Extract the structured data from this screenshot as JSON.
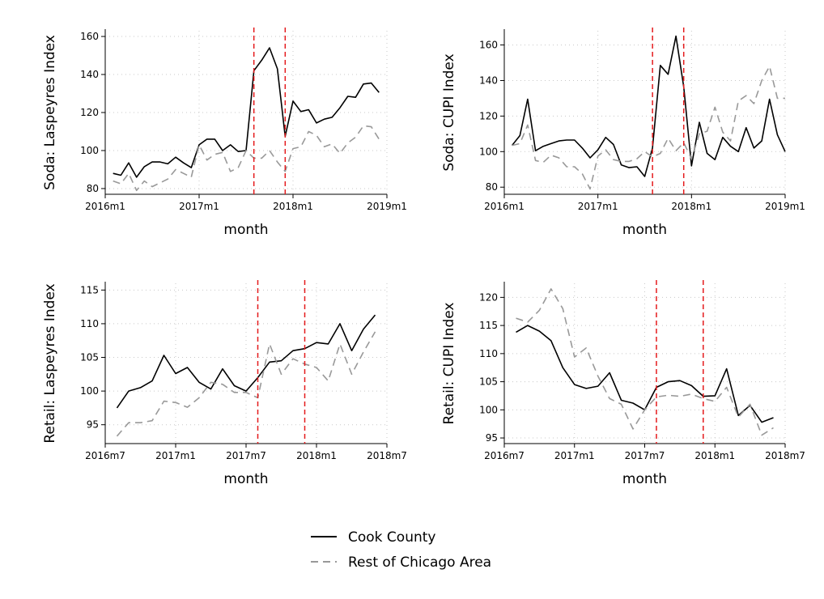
{
  "chart_data": [
    {
      "type": "line",
      "ylabel": "Soda: Laspeyres Index",
      "xlabel": "month",
      "xlim": [
        0,
        36
      ],
      "ylim": [
        77,
        163
      ],
      "yticks": [
        80,
        100,
        120,
        140,
        160
      ],
      "xticks": [
        {
          "v": 0,
          "label": "2016m1"
        },
        {
          "v": 12,
          "label": "2017m1"
        },
        {
          "v": 24,
          "label": "2018m1"
        },
        {
          "v": 36,
          "label": "2019m1"
        }
      ],
      "vlines": [
        19,
        23
      ],
      "x_start": 1,
      "series": [
        {
          "name": "Cook County",
          "values": [
            88,
            87,
            93.5,
            86,
            91.5,
            94,
            94,
            93,
            96.5,
            93.5,
            91,
            103,
            106,
            106,
            100,
            103,
            99.5,
            100,
            142,
            147.5,
            154,
            143,
            107.5,
            126,
            120.5,
            121.5,
            114.5,
            116.5,
            117.5,
            122.5,
            128.5,
            128,
            135,
            135.5,
            130.5
          ]
        },
        {
          "name": "Rest of Chicago Area",
          "values": [
            84,
            82.5,
            88,
            79,
            84,
            81,
            83,
            85,
            90,
            88,
            86,
            103,
            95,
            98,
            99,
            89,
            91,
            100,
            96,
            96,
            100,
            94,
            89,
            101,
            102,
            110,
            108,
            102,
            103.5,
            98.5,
            104,
            107,
            113,
            112.5,
            106
          ]
        }
      ]
    },
    {
      "type": "line",
      "ylabel": "Soda: CUPI Index",
      "xlabel": "month",
      "xlim": [
        0,
        36
      ],
      "ylim": [
        76,
        168
      ],
      "yticks": [
        80,
        100,
        120,
        140,
        160
      ],
      "xticks": [
        {
          "v": 0,
          "label": "2016m1"
        },
        {
          "v": 12,
          "label": "2017m1"
        },
        {
          "v": 24,
          "label": "2018m1"
        },
        {
          "v": 36,
          "label": "2019m1"
        }
      ],
      "vlines": [
        19,
        23
      ],
      "x_start": 1,
      "series": [
        {
          "name": "Cook County",
          "values": [
            103.5,
            109,
            129.5,
            100.5,
            103,
            104.5,
            106,
            106.5,
            106.5,
            102,
            96.5,
            101,
            108,
            104,
            92.5,
            91,
            91.5,
            86,
            102,
            148.5,
            143.5,
            165,
            136.5,
            92,
            116.5,
            99,
            95.5,
            108,
            103,
            100,
            113.5,
            102,
            106,
            129.5,
            109.5,
            100
          ]
        },
        {
          "name": "Rest of Chicago Area",
          "values": [
            103.5,
            104.5,
            115,
            95,
            94,
            98,
            96.5,
            91.5,
            91.5,
            87.5,
            79,
            97.5,
            101,
            95.5,
            94.5,
            94.5,
            96,
            100,
            97,
            99,
            107.5,
            100.5,
            105,
            96,
            110,
            111.5,
            125,
            111,
            106,
            128.5,
            131.5,
            127,
            140,
            148,
            130,
            130
          ]
        }
      ]
    },
    {
      "type": "line",
      "ylabel": "Retail: Laspeyres Index",
      "xlabel": "month",
      "xlim": [
        0,
        24
      ],
      "ylim": [
        92.2,
        116
      ],
      "yticks": [
        95,
        100,
        105,
        110,
        115
      ],
      "xticks": [
        {
          "v": 0,
          "label": "2016m7"
        },
        {
          "v": 6,
          "label": "2017m1"
        },
        {
          "v": 12,
          "label": "2017m7"
        },
        {
          "v": 18,
          "label": "2018m1"
        },
        {
          "v": 24,
          "label": "2018m7"
        }
      ],
      "vlines": [
        13,
        17
      ],
      "x_start": 1,
      "series": [
        {
          "name": "Cook County",
          "values": [
            97.5,
            100,
            100.5,
            101.5,
            105.3,
            102.6,
            103.5,
            101.3,
            100.3,
            103.3,
            100.8,
            100,
            102,
            104.3,
            104.5,
            106,
            106.3,
            107.2,
            107,
            110,
            106,
            109.2,
            111.3
          ]
        },
        {
          "name": "Rest of Chicago Area",
          "values": [
            93.3,
            95.3,
            95.3,
            95.6,
            98.5,
            98.3,
            97.6,
            99,
            101.3,
            101,
            99.8,
            99.8,
            99,
            107,
            102.5,
            104.8,
            104,
            103.5,
            101.5,
            107,
            102.5,
            105.8,
            108.8
          ]
        }
      ]
    },
    {
      "type": "line",
      "ylabel": "Retail: CUPI Index",
      "xlabel": "month",
      "xlim": [
        0,
        24
      ],
      "ylim": [
        94,
        122.5
      ],
      "yticks": [
        95,
        100,
        105,
        110,
        115,
        120
      ],
      "xticks": [
        {
          "v": 0,
          "label": "2016m7"
        },
        {
          "v": 6,
          "label": "2017m1"
        },
        {
          "v": 12,
          "label": "2017m7"
        },
        {
          "v": 18,
          "label": "2018m1"
        },
        {
          "v": 24,
          "label": "2018m7"
        }
      ],
      "vlines": [
        13,
        17
      ],
      "x_start": 1,
      "series": [
        {
          "name": "Cook County",
          "values": [
            113.8,
            115,
            114,
            112.3,
            107.5,
            104.5,
            103.8,
            104.2,
            106.6,
            101.7,
            101.2,
            100,
            104,
            105,
            105.2,
            104.3,
            102.4,
            102.5,
            107.3,
            99,
            100.8,
            97.8,
            98.6
          ]
        },
        {
          "name": "Rest of Chicago Area",
          "values": [
            116.3,
            115.6,
            117.7,
            121.5,
            118,
            109.4,
            111,
            106,
            102,
            101,
            96.6,
            100,
            102.3,
            102.6,
            102.4,
            102.8,
            102,
            101.5,
            104,
            98.7,
            101,
            95.5,
            96.8
          ]
        }
      ]
    }
  ],
  "legend": {
    "items": [
      {
        "label": "Cook County",
        "color": "#000000",
        "dash": "solid"
      },
      {
        "label": "Rest of Chicago Area",
        "color": "#999999",
        "dash": "dashed"
      }
    ]
  },
  "colors": {
    "cook": "#000000",
    "rest": "#999999",
    "vline": "#e41a1c",
    "grid": "#c8c8c8"
  }
}
